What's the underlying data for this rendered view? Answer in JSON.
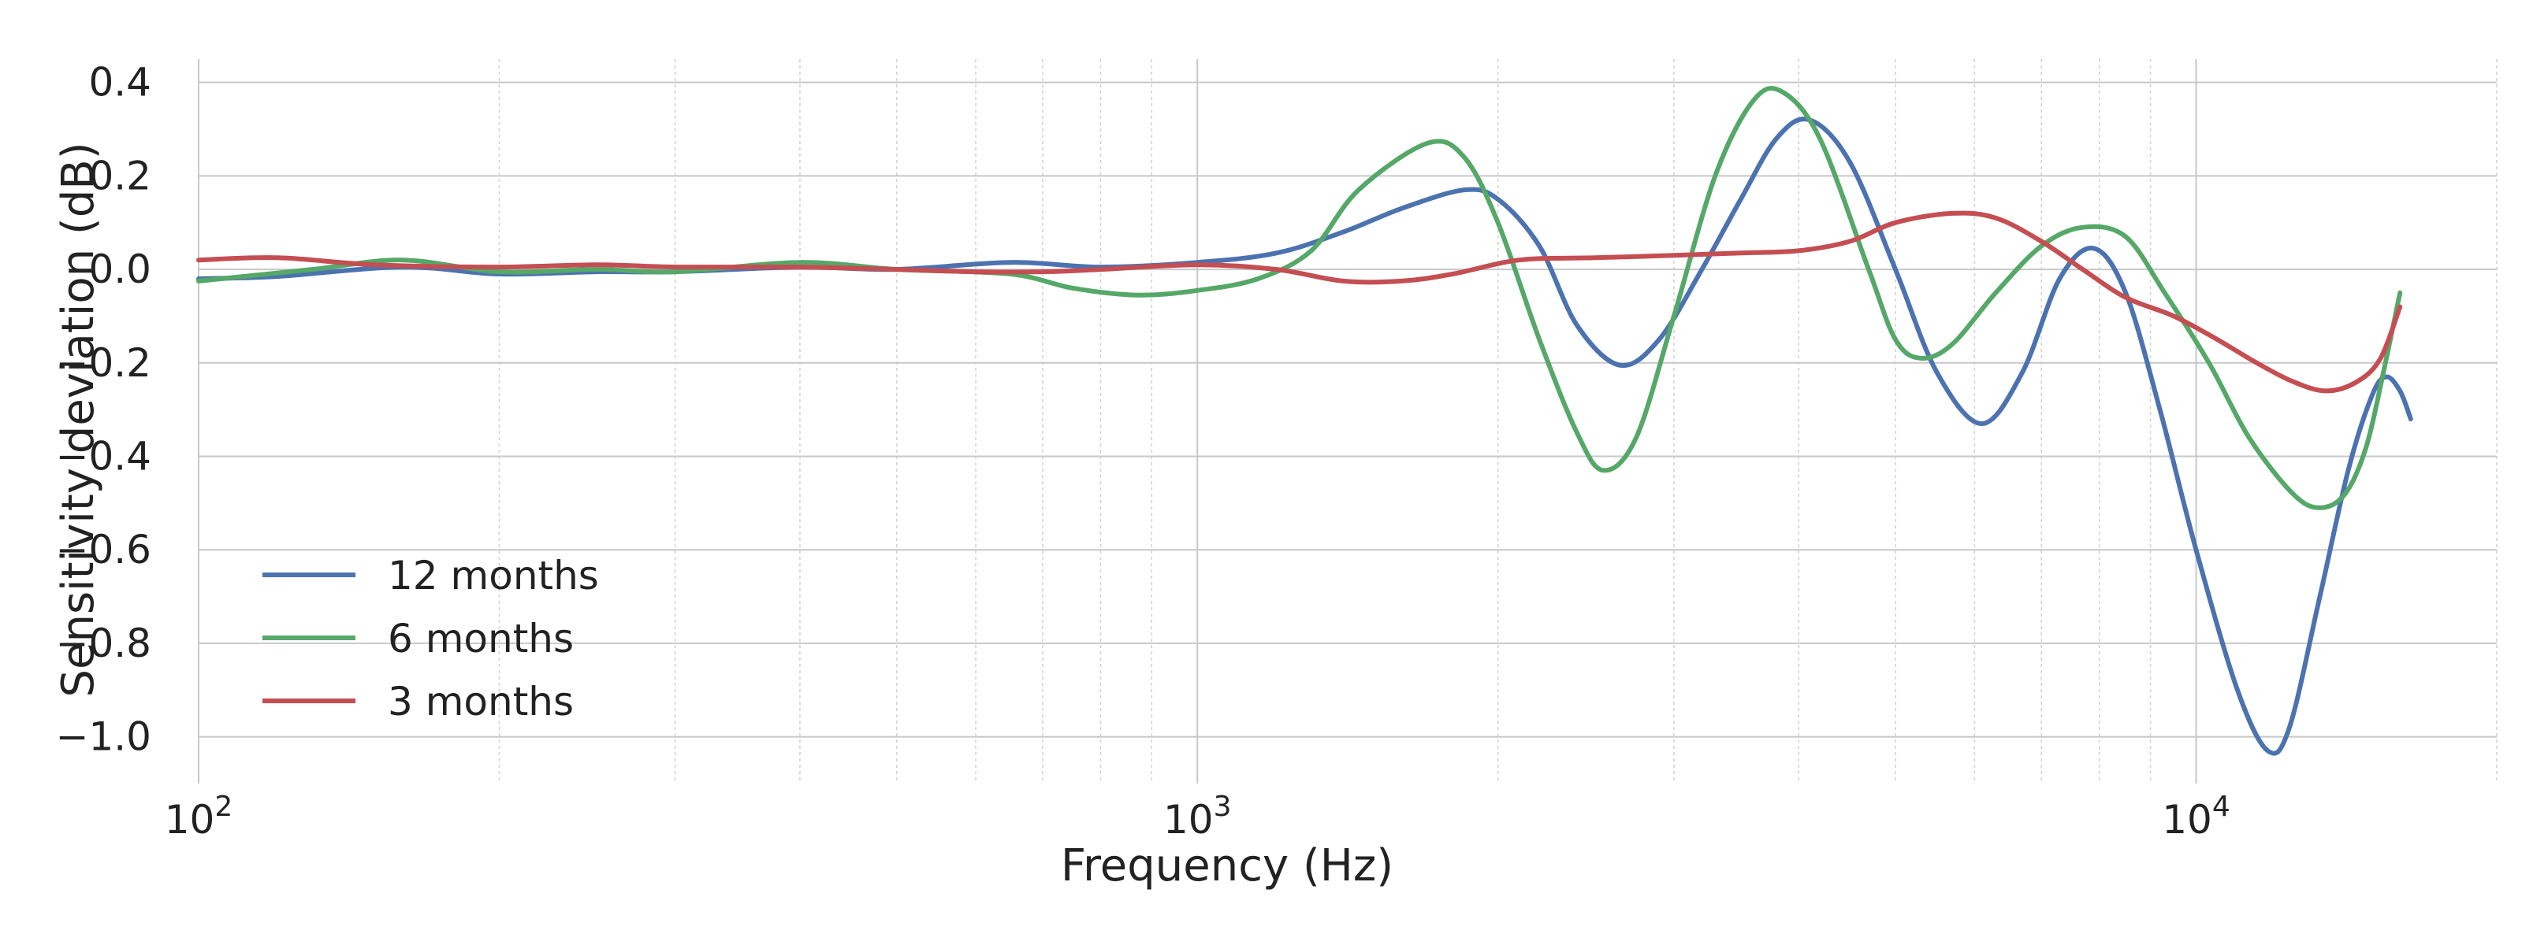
{
  "chart_data": {
    "type": "line",
    "xlabel": "Frequency (Hz)",
    "ylabel": "Sensitivity deviation (dB)",
    "xscale": "log",
    "xlim": [
      100,
      20000
    ],
    "ylim": [
      -1.1,
      0.45
    ],
    "grid": true,
    "legend_position": "lower-left",
    "x_ticks": [
      {
        "value": 100,
        "base": "10",
        "exp": "2"
      },
      {
        "value": 1000,
        "base": "10",
        "exp": "3"
      },
      {
        "value": 10000,
        "base": "10",
        "exp": "4"
      }
    ],
    "y_ticks": [
      {
        "value": 0.4,
        "label": "0.4"
      },
      {
        "value": 0.2,
        "label": "0.2"
      },
      {
        "value": 0.0,
        "label": "0.0"
      },
      {
        "value": -0.2,
        "label": "−0.2"
      },
      {
        "value": -0.4,
        "label": "−0.4"
      },
      {
        "value": -0.6,
        "label": "−0.6"
      },
      {
        "value": -0.8,
        "label": "−0.8"
      },
      {
        "value": -1.0,
        "label": "−1.0"
      }
    ],
    "series": [
      {
        "name": "12 months",
        "color": "#4c72b0",
        "points": [
          [
            100,
            -0.02
          ],
          [
            120,
            -0.015
          ],
          [
            160,
            0.005
          ],
          [
            200,
            -0.01
          ],
          [
            250,
            -0.005
          ],
          [
            300,
            -0.005
          ],
          [
            400,
            0.005
          ],
          [
            500,
            0.0
          ],
          [
            650,
            0.015
          ],
          [
            800,
            0.005
          ],
          [
            1000,
            0.015
          ],
          [
            1200,
            0.035
          ],
          [
            1400,
            0.08
          ],
          [
            1600,
            0.13
          ],
          [
            1850,
            0.17
          ],
          [
            2000,
            0.15
          ],
          [
            2200,
            0.05
          ],
          [
            2400,
            -0.12
          ],
          [
            2650,
            -0.205
          ],
          [
            2900,
            -0.15
          ],
          [
            3200,
            0.0
          ],
          [
            3500,
            0.15
          ],
          [
            3800,
            0.28
          ],
          [
            4100,
            0.32
          ],
          [
            4500,
            0.23
          ],
          [
            5000,
            0.0
          ],
          [
            5500,
            -0.22
          ],
          [
            6100,
            -0.33
          ],
          [
            6700,
            -0.22
          ],
          [
            7300,
            -0.02
          ],
          [
            7900,
            0.045
          ],
          [
            8500,
            -0.05
          ],
          [
            9200,
            -0.3
          ],
          [
            10000,
            -0.6
          ],
          [
            11000,
            -0.9
          ],
          [
            11800,
            -1.03
          ],
          [
            12400,
            -0.98
          ],
          [
            13300,
            -0.7
          ],
          [
            14200,
            -0.43
          ],
          [
            15000,
            -0.27
          ],
          [
            15500,
            -0.23
          ],
          [
            16000,
            -0.26
          ],
          [
            16400,
            -0.32
          ]
        ]
      },
      {
        "name": "6 months",
        "color": "#55a868",
        "points": [
          [
            100,
            -0.025
          ],
          [
            130,
            0.0
          ],
          [
            160,
            0.02
          ],
          [
            200,
            -0.005
          ],
          [
            250,
            0.0
          ],
          [
            300,
            -0.005
          ],
          [
            400,
            0.015
          ],
          [
            500,
            0.0
          ],
          [
            650,
            -0.01
          ],
          [
            750,
            -0.04
          ],
          [
            870,
            -0.055
          ],
          [
            1000,
            -0.045
          ],
          [
            1150,
            -0.02
          ],
          [
            1300,
            0.04
          ],
          [
            1450,
            0.17
          ],
          [
            1700,
            0.27
          ],
          [
            1850,
            0.24
          ],
          [
            2000,
            0.1
          ],
          [
            2200,
            -0.15
          ],
          [
            2400,
            -0.35
          ],
          [
            2550,
            -0.43
          ],
          [
            2750,
            -0.36
          ],
          [
            3000,
            -0.1
          ],
          [
            3300,
            0.2
          ],
          [
            3600,
            0.36
          ],
          [
            3850,
            0.38
          ],
          [
            4200,
            0.28
          ],
          [
            4700,
            0.0
          ],
          [
            5000,
            -0.15
          ],
          [
            5300,
            -0.19
          ],
          [
            5700,
            -0.16
          ],
          [
            6300,
            -0.05
          ],
          [
            7000,
            0.05
          ],
          [
            7700,
            0.09
          ],
          [
            8500,
            0.07
          ],
          [
            9300,
            -0.05
          ],
          [
            10300,
            -0.2
          ],
          [
            11300,
            -0.36
          ],
          [
            12500,
            -0.48
          ],
          [
            13300,
            -0.51
          ],
          [
            14100,
            -0.48
          ],
          [
            14800,
            -0.38
          ],
          [
            15400,
            -0.22
          ],
          [
            16000,
            -0.05
          ]
        ]
      },
      {
        "name": "3 months",
        "color": "#c44e52",
        "points": [
          [
            100,
            0.02
          ],
          [
            120,
            0.025
          ],
          [
            150,
            0.01
          ],
          [
            200,
            0.005
          ],
          [
            250,
            0.01
          ],
          [
            300,
            0.005
          ],
          [
            400,
            0.005
          ],
          [
            500,
            0.0
          ],
          [
            600,
            -0.005
          ],
          [
            700,
            -0.005
          ],
          [
            800,
            0.0
          ],
          [
            1000,
            0.01
          ],
          [
            1200,
            0.0
          ],
          [
            1400,
            -0.025
          ],
          [
            1600,
            -0.025
          ],
          [
            1800,
            -0.01
          ],
          [
            2100,
            0.02
          ],
          [
            2500,
            0.025
          ],
          [
            3000,
            0.03
          ],
          [
            3500,
            0.035
          ],
          [
            4000,
            0.04
          ],
          [
            4500,
            0.06
          ],
          [
            5000,
            0.1
          ],
          [
            5700,
            0.12
          ],
          [
            6300,
            0.11
          ],
          [
            7000,
            0.06
          ],
          [
            7700,
            0.0
          ],
          [
            8500,
            -0.06
          ],
          [
            9500,
            -0.1
          ],
          [
            10500,
            -0.15
          ],
          [
            11500,
            -0.2
          ],
          [
            12500,
            -0.24
          ],
          [
            13500,
            -0.26
          ],
          [
            14500,
            -0.24
          ],
          [
            15300,
            -0.19
          ],
          [
            16000,
            -0.08
          ]
        ]
      }
    ]
  }
}
